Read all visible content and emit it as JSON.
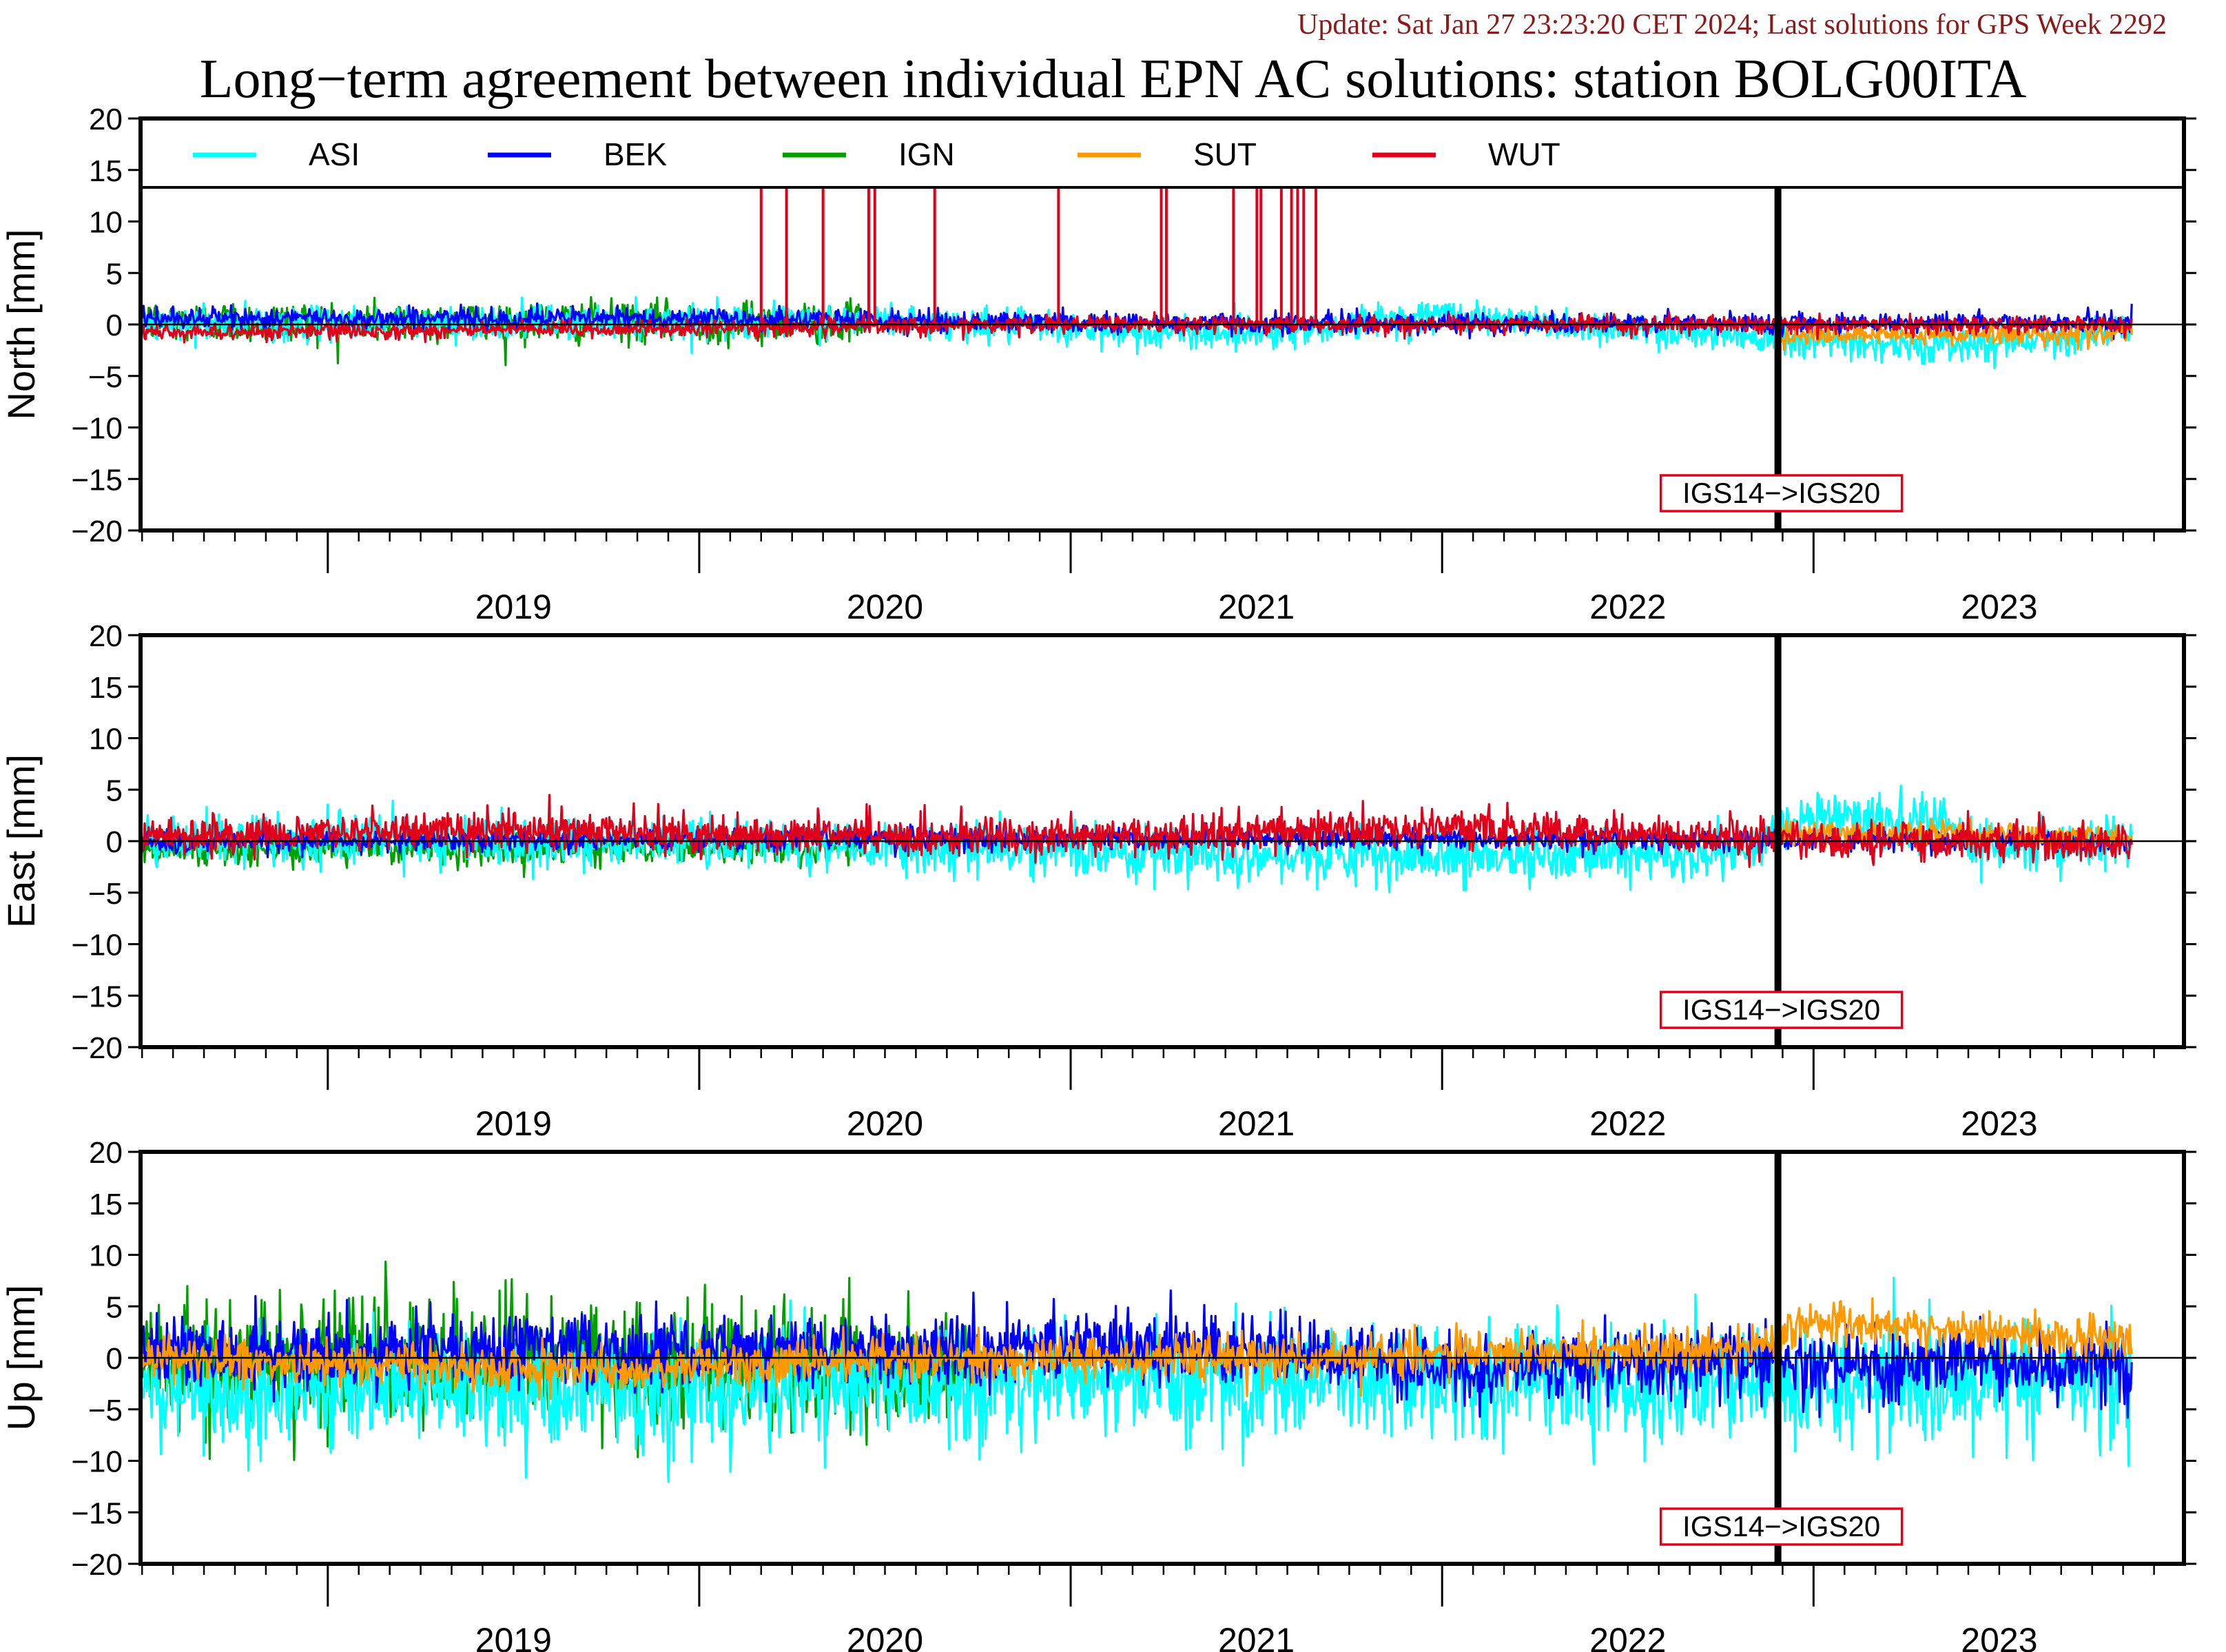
{
  "header": {
    "update": "Update: Sat Jan 27 23:23:20 CET 2024; Last solutions for GPS Week 2292",
    "title": "Long−term agreement between individual EPN AC solutions: station BOLG00ITA"
  },
  "chart_data": {
    "type": "line",
    "x_range": [
      "2018-07-01",
      "2023-12-31"
    ],
    "x_ticks": [
      "2019",
      "2020",
      "2021",
      "2022",
      "2023"
    ],
    "ylim": [
      -20,
      20
    ],
    "y_ticks": [
      "20",
      "15",
      "10",
      "5",
      "0",
      "−5",
      "−10",
      "−15",
      "−20"
    ],
    "grid": false,
    "legend_position": "top",
    "series": [
      {
        "name": "ASI",
        "color": "#00ffff"
      },
      {
        "name": "BEK",
        "color": "#0000ff"
      },
      {
        "name": "IGN",
        "color": "#00a000"
      },
      {
        "name": "SUT",
        "color": "#ff9900"
      },
      {
        "name": "WUT",
        "color": "#e0001b"
      }
    ],
    "frame_change": {
      "date": "2022-11-27",
      "label": "IGS14−>IGS20"
    },
    "panels": [
      {
        "component": "North",
        "ylabel": "North [mm]",
        "series": {
          "ASI": {
            "start": "2018-07-01",
            "end": "2023-11-10",
            "noise": 0.8,
            "trend": [
              [
                2018.5,
                0
              ],
              [
                2020.5,
                0.4
              ],
              [
                2021.2,
                -0.8
              ],
              [
                2021.6,
                -0.6
              ],
              [
                2022.0,
                1.0
              ],
              [
                2022.3,
                0
              ],
              [
                2022.8,
                -1.0
              ],
              [
                2023.3,
                -2.2
              ],
              [
                2023.9,
                -0.5
              ]
            ]
          },
          "BEK": {
            "start": "2018-07-01",
            "end": "2023-11-10",
            "noise": 0.5,
            "trend": [
              [
                2018.5,
                0.6
              ],
              [
                2020.0,
                0.6
              ],
              [
                2021.0,
                0.2
              ],
              [
                2022.0,
                0.1
              ],
              [
                2023.9,
                0.2
              ]
            ]
          },
          "IGN": {
            "start": "2018-07-01",
            "end": "2020-06-10",
            "noise": 1.0,
            "trend": [
              [
                2018.5,
                0.3
              ],
              [
                2020.4,
                0.2
              ]
            ]
          },
          "SUT": {
            "start": "2022-11-27",
            "end": "2023-11-10",
            "noise": 0.5,
            "trend": [
              [
                2022.9,
                -1.2
              ],
              [
                2023.9,
                -0.8
              ]
            ]
          },
          "WUT": {
            "start": "2018-07-01",
            "end": "2023-11-10",
            "noise": 0.4,
            "trend": [
              [
                2018.5,
                -0.8
              ],
              [
                2020.0,
                -0.4
              ],
              [
                2021.0,
                0
              ],
              [
                2023.9,
                0
              ]
            ]
          }
        },
        "spikes": [
          "2020-03-02",
          "2020-03-27",
          "2020-05-02",
          "2020-06-16",
          "2020-06-22",
          "2020-08-20",
          "2020-12-20",
          "2021-03-31",
          "2021-04-05",
          "2021-06-10",
          "2021-07-03",
          "2021-07-07",
          "2021-07-27",
          "2021-08-06",
          "2021-08-12",
          "2021-08-18",
          "2021-08-30"
        ]
      },
      {
        "component": "East",
        "ylabel": "East [mm]",
        "series": {
          "ASI": {
            "start": "2018-07-01",
            "end": "2023-11-10",
            "noise": 1.2,
            "trend": [
              [
                2018.5,
                0
              ],
              [
                2020.0,
                0
              ],
              [
                2021.0,
                -1.0
              ],
              [
                2022.0,
                -1.5
              ],
              [
                2022.8,
                -1.5
              ],
              [
                2022.95,
                2.5
              ],
              [
                2023.3,
                2.0
              ],
              [
                2023.5,
                -1.0
              ],
              [
                2023.9,
                0.5
              ]
            ]
          },
          "BEK": {
            "start": "2018-07-01",
            "end": "2023-11-10",
            "noise": 0.5,
            "trend": [
              [
                2018.5,
                0
              ],
              [
                2021.0,
                0.3
              ],
              [
                2023.9,
                0
              ]
            ]
          },
          "IGN": {
            "start": "2018-07-01",
            "end": "2020-06-10",
            "noise": 0.8,
            "trend": [
              [
                2018.5,
                -0.7
              ],
              [
                2020.4,
                -0.5
              ]
            ]
          },
          "SUT": {
            "start": "2022-11-27",
            "end": "2023-11-10",
            "noise": 0.6,
            "trend": [
              [
                2022.9,
                0.8
              ],
              [
                2023.9,
                0.5
              ]
            ]
          },
          "WUT": {
            "start": "2018-07-01",
            "end": "2023-11-10",
            "noise": 0.9,
            "trend": [
              [
                2018.5,
                0.5
              ],
              [
                2019.5,
                1.2
              ],
              [
                2020.0,
                0.6
              ],
              [
                2021.0,
                0.5
              ],
              [
                2022.0,
                1.2
              ],
              [
                2022.5,
                0.8
              ],
              [
                2023.0,
                0
              ],
              [
                2023.9,
                0
              ]
            ]
          }
        },
        "spikes": []
      },
      {
        "component": "Up",
        "ylabel": "Up [mm]",
        "series": {
          "ASI": {
            "start": "2018-07-01",
            "end": "2023-11-10",
            "noise": 2.8,
            "trend": [
              [
                2018.5,
                -3
              ],
              [
                2020.5,
                -3
              ],
              [
                2021.0,
                -2
              ],
              [
                2022.0,
                -2.5
              ],
              [
                2022.9,
                -3
              ],
              [
                2023.3,
                -3
              ],
              [
                2023.9,
                -1.5
              ]
            ]
          },
          "BEK": {
            "start": "2018-07-01",
            "end": "2023-11-10",
            "noise": 1.7,
            "trend": [
              [
                2018.5,
                0.5
              ],
              [
                2020.5,
                1.0
              ],
              [
                2021.5,
                1.0
              ],
              [
                2022.0,
                -1.0
              ],
              [
                2022.9,
                -0.5
              ],
              [
                2023.9,
                -0.5
              ]
            ]
          },
          "IGN": {
            "start": "2018-07-01",
            "end": "2020-09-25",
            "noise": 3.0,
            "trend": [
              [
                2018.5,
                0
              ],
              [
                2020.7,
                -0.5
              ]
            ]
          },
          "SUT": {
            "start": "2018-07-01",
            "end": "2023-11-10",
            "noise": 1.0,
            "trend": [
              [
                2018.5,
                0
              ],
              [
                2019.8,
                -1.2
              ],
              [
                2020.4,
                0
              ],
              [
                2021.5,
                0
              ],
              [
                2022.0,
                0.5
              ],
              [
                2022.9,
                1.0
              ],
              [
                2022.95,
                3.5
              ],
              [
                2023.5,
                2.5
              ],
              [
                2023.9,
                1.5
              ]
            ]
          },
          "WUT": {
            "start": "2018-07-01",
            "end": "2018-07-01",
            "noise": 0,
            "trend": [
              [
                2018.5,
                0
              ]
            ]
          }
        },
        "spikes": []
      }
    ]
  }
}
